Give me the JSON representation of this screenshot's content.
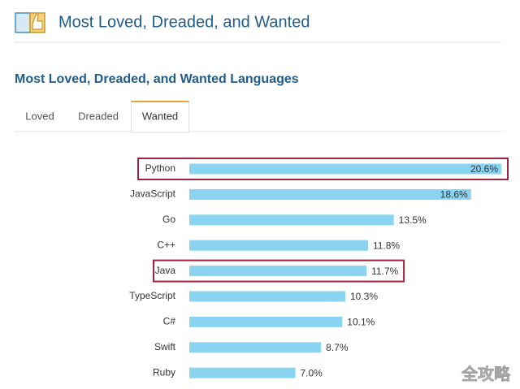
{
  "header": {
    "title": "Most Loved, Dreaded, and Wanted"
  },
  "tabs": {
    "items": [
      "Loved",
      "Dreaded",
      "Wanted"
    ],
    "active": 2
  },
  "watermark": "全攻略",
  "chart_data": {
    "type": "bar",
    "orientation": "horizontal",
    "title": "Most Loved, Dreaded, and Wanted Languages",
    "categories": [
      "Python",
      "JavaScript",
      "Go",
      "C++",
      "Java",
      "TypeScript",
      "C#",
      "Swift",
      "Ruby"
    ],
    "values": [
      20.6,
      18.6,
      13.5,
      11.8,
      11.7,
      10.3,
      10.1,
      8.7,
      7.0
    ],
    "value_labels": [
      "20.6%",
      "18.6%",
      "13.5%",
      "11.8%",
      "11.7%",
      "10.3%",
      "10.1%",
      "8.7%",
      "7.0%"
    ],
    "color": "#8ad4f2",
    "highlight": [
      0,
      4
    ],
    "highlight_color": "#a3223f"
  }
}
